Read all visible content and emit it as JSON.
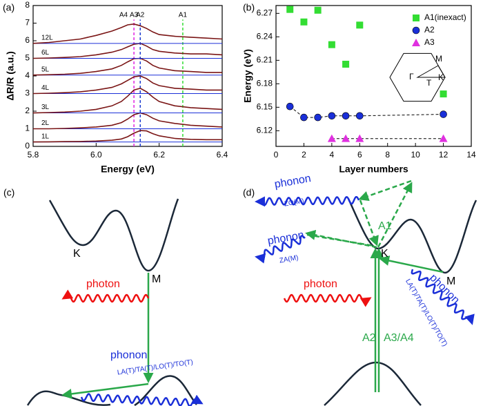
{
  "chart_data": [
    {
      "type": "line",
      "panel_label": "(a)",
      "xlabel": "Energy (eV)",
      "ylabel": "ΔR/R (a.u.)",
      "xlim": [
        5.8,
        6.4
      ],
      "xticks": [
        5.8,
        {
          "value": 6,
          "label": "6.0"
        },
        6.2,
        6.4
      ],
      "ylim": [
        0,
        8
      ],
      "yticks": [
        0,
        1,
        2,
        3,
        4,
        5,
        6,
        7,
        8
      ],
      "grid": false,
      "series": [
        {
          "name": "1L",
          "color": "#7a1515",
          "x": [
            5.8,
            5.85,
            5.9,
            5.95,
            6.0,
            6.05,
            6.08,
            6.1,
            6.12,
            6.14,
            6.16,
            6.18,
            6.2,
            6.25,
            6.3,
            6.35,
            6.4
          ],
          "values": [
            0.25,
            0.26,
            0.27,
            0.28,
            0.3,
            0.35,
            0.42,
            0.55,
            0.75,
            0.9,
            0.88,
            0.72,
            0.6,
            0.45,
            0.4,
            0.38,
            0.38
          ]
        },
        {
          "name": "2L",
          "color": "#7a1515",
          "x": [
            5.8,
            5.85,
            5.9,
            5.95,
            6.0,
            6.05,
            6.08,
            6.1,
            6.12,
            6.14,
            6.16,
            6.18,
            6.2,
            6.25,
            6.3,
            6.35,
            6.4
          ],
          "values": [
            1.0,
            1.0,
            1.02,
            1.05,
            1.1,
            1.2,
            1.35,
            1.55,
            1.8,
            1.9,
            1.8,
            1.6,
            1.45,
            1.3,
            1.2,
            1.15,
            1.1
          ]
        },
        {
          "name": "3L",
          "color": "#7a1515",
          "x": [
            5.8,
            5.85,
            5.9,
            5.95,
            6.0,
            6.05,
            6.08,
            6.1,
            6.12,
            6.14,
            6.16,
            6.18,
            6.2,
            6.25,
            6.3,
            6.35,
            6.4
          ],
          "values": [
            1.9,
            1.92,
            1.95,
            2.0,
            2.1,
            2.3,
            2.55,
            2.85,
            3.2,
            3.3,
            3.1,
            2.8,
            2.55,
            2.3,
            2.2,
            2.15,
            2.1
          ]
        },
        {
          "name": "4L",
          "color": "#7a1515",
          "x": [
            5.8,
            5.85,
            5.9,
            5.95,
            6.0,
            6.05,
            6.08,
            6.1,
            6.12,
            6.14,
            6.16,
            6.18,
            6.2,
            6.25,
            6.3,
            6.35,
            6.4
          ],
          "values": [
            3.0,
            3.02,
            3.05,
            3.1,
            3.2,
            3.35,
            3.55,
            3.75,
            3.95,
            4.0,
            3.85,
            3.6,
            3.45,
            3.3,
            3.25,
            3.2,
            3.2
          ]
        },
        {
          "name": "5L",
          "color": "#7a1515",
          "x": [
            5.8,
            5.85,
            5.9,
            5.95,
            6.0,
            6.05,
            6.08,
            6.1,
            6.12,
            6.14,
            6.16,
            6.18,
            6.2,
            6.25,
            6.3,
            6.35,
            6.4
          ],
          "values": [
            4.05,
            4.07,
            4.1,
            4.15,
            4.25,
            4.4,
            4.6,
            4.8,
            4.98,
            5.0,
            4.85,
            4.6,
            4.45,
            4.3,
            4.25,
            4.2,
            4.2
          ]
        },
        {
          "name": "6L",
          "color": "#7a1515",
          "x": [
            5.8,
            5.85,
            5.9,
            5.95,
            6.0,
            6.05,
            6.08,
            6.1,
            6.12,
            6.14,
            6.16,
            6.18,
            6.2,
            6.25,
            6.3,
            6.35,
            6.4
          ],
          "values": [
            5.0,
            5.02,
            5.05,
            5.1,
            5.2,
            5.35,
            5.5,
            5.65,
            5.8,
            5.85,
            5.7,
            5.5,
            5.4,
            5.3,
            5.25,
            5.25,
            5.2
          ]
        },
        {
          "name": "12L",
          "color": "#7a1515",
          "x": [
            5.8,
            5.85,
            5.9,
            5.95,
            6.0,
            6.05,
            6.08,
            6.1,
            6.12,
            6.14,
            6.16,
            6.18,
            6.2,
            6.25,
            6.3,
            6.35,
            6.4
          ],
          "values": [
            5.85,
            5.9,
            6.0,
            6.1,
            6.3,
            6.55,
            6.75,
            6.9,
            6.95,
            6.85,
            6.7,
            6.5,
            6.35,
            6.25,
            6.2,
            6.15,
            6.1
          ]
        }
      ],
      "annotations": [
        {
          "text": "A4",
          "x": 6.1
        },
        {
          "text": "A3",
          "x": 6.12,
          "color": "#e020e0"
        },
        {
          "text": "A2",
          "x": 6.14,
          "color": "#1a3ad0"
        },
        {
          "text": "A1",
          "x": 6.275,
          "color": "#33dd33"
        }
      ]
    },
    {
      "type": "scatter",
      "panel_label": "(b)",
      "xlabel": "Layer numbers",
      "ylabel": "Energy (eV)",
      "xlim": [
        0,
        14
      ],
      "xticks": [
        0,
        2,
        4,
        6,
        8,
        10,
        12,
        14
      ],
      "ylim": [
        6.1,
        6.28
      ],
      "yticks": [
        6.12,
        6.15,
        6.18,
        6.21,
        6.24,
        6.27
      ],
      "grid": false,
      "legend": "upper right",
      "series": [
        {
          "name": "A1(inexact)",
          "color": "#33dd33",
          "marker": "square",
          "x": [
            1,
            2,
            3,
            4,
            5,
            6,
            12
          ],
          "values": [
            6.275,
            6.259,
            6.274,
            6.23,
            6.205,
            6.255,
            6.167
          ]
        },
        {
          "name": "A2",
          "color": "#1a2fd8",
          "marker": "circle",
          "line_style": "dashed",
          "x": [
            1,
            2,
            3,
            4,
            5,
            6,
            12
          ],
          "values": [
            6.151,
            6.137,
            6.137,
            6.139,
            6.139,
            6.139,
            6.141
          ]
        },
        {
          "name": "A3",
          "color": "#e030e0",
          "marker": "triangle",
          "line_style": "dashed",
          "x": [
            4,
            5,
            6,
            12
          ],
          "values": [
            6.11,
            6.11,
            6.11,
            6.11
          ]
        }
      ],
      "inset_labels": {
        "gamma": "Γ",
        "m": "M",
        "k": "K",
        "t": "T"
      }
    }
  ],
  "diagram_c": {
    "panel_label": "(c)",
    "k": "K",
    "m": "M",
    "photon": "photon",
    "phonon": "phonon",
    "modes": "LA(T)/TA(T)/LO(T)/TO(T)"
  },
  "diagram_d": {
    "panel_label": "(d)",
    "phonon_zo": "phonon",
    "zo": "ZO(M)",
    "phonon_za": "phonon",
    "za": "ZA(M)",
    "a1": "A1",
    "k": "K",
    "photon": "photon",
    "a2": "A2",
    "a34": "A3/A4",
    "phonon_t": "phonon",
    "modes": "LA(T)/TA(T)/LO(T)/TO(T)",
    "m": "M"
  }
}
